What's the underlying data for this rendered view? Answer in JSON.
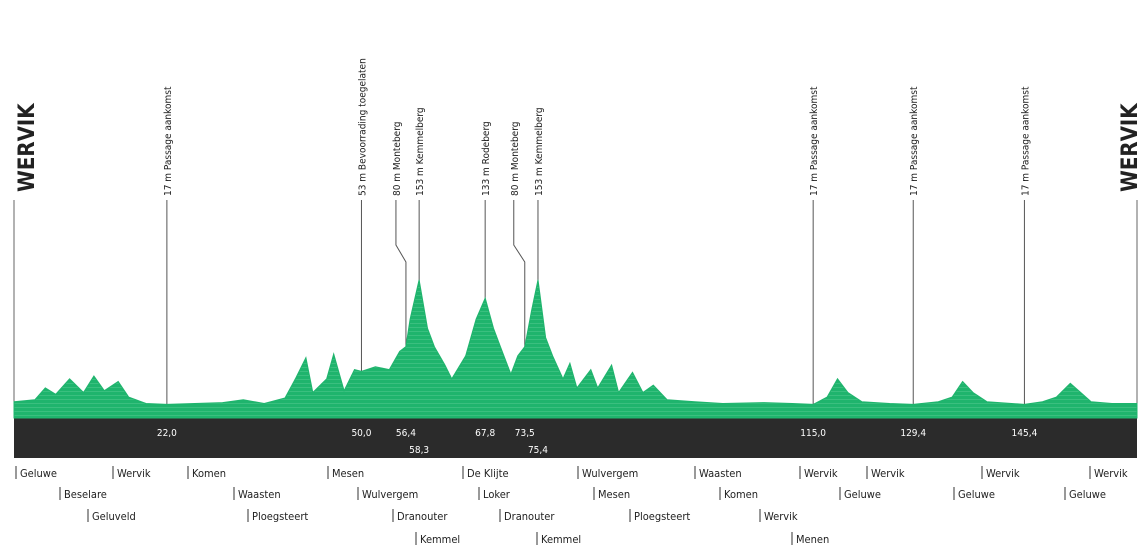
{
  "chart_data": {
    "type": "area",
    "color": "#1fb46d",
    "start_label": "WERVIK",
    "end_label": "WERVIK",
    "x": [
      0,
      3,
      4.5,
      6,
      8,
      10,
      11.5,
      13,
      15,
      16.5,
      19,
      22,
      26,
      30,
      33,
      36,
      39,
      40.5,
      42,
      43,
      45,
      46,
      47.5,
      49,
      50,
      52,
      54,
      55.5,
      56.4,
      57,
      58.3,
      59.5,
      60.5,
      62,
      63,
      65,
      66.5,
      67.8,
      69,
      70,
      71.5,
      72.5,
      73.5,
      74.5,
      75.4,
      76.5,
      77.5,
      79,
      80,
      81,
      83,
      84,
      86,
      87,
      89,
      90.5,
      92,
      94,
      98,
      102,
      108,
      112,
      115,
      117,
      118.5,
      120,
      122,
      126,
      129.4,
      133,
      135,
      136.5,
      138,
      140,
      145.4,
      148,
      150,
      152,
      153.5,
      155,
      158,
      161.6
    ],
    "values": [
      20,
      22,
      35,
      28,
      45,
      30,
      48,
      32,
      42,
      25,
      18,
      17,
      18,
      19,
      22,
      18,
      24,
      45,
      68,
      30,
      45,
      72,
      32,
      55,
      53,
      58,
      55,
      75,
      80,
      110,
      153,
      100,
      80,
      60,
      45,
      70,
      110,
      133,
      100,
      80,
      50,
      70,
      80,
      120,
      153,
      90,
      70,
      45,
      62,
      35,
      55,
      35,
      60,
      30,
      52,
      30,
      38,
      22,
      20,
      18,
      19,
      18,
      17,
      25,
      45,
      30,
      20,
      18,
      17,
      20,
      25,
      42,
      30,
      20,
      17,
      20,
      25,
      40,
      30,
      20,
      18,
      18
    ],
    "xlim": [
      0,
      161.6
    ],
    "ylim": [
      0,
      180
    ],
    "markers": [
      {
        "km": {
          "value": 22.0,
          "label": "22,0"
        },
        "text": "17 m Passage aankomst"
      },
      {
        "km": {
          "value": 50.0,
          "label": "50,0"
        },
        "text": "53 m Bevoorrading toegelaten"
      },
      {
        "km": {
          "value": 56.4,
          "label": "56,4"
        },
        "text": "80 m Monteberg"
      },
      {
        "km": {
          "value": 58.3,
          "label": "58,3"
        },
        "text": "153 m Kemmelberg"
      },
      {
        "km": {
          "value": 67.8,
          "label": "67,8"
        },
        "text": "133 m Rodeberg"
      },
      {
        "km": {
          "value": 73.5,
          "label": "73,5"
        },
        "text": "80 m Monteberg"
      },
      {
        "km": {
          "value": 75.4,
          "label": "75,4"
        },
        "text": "153 m Kemmelberg"
      },
      {
        "km": {
          "value": 115.0,
          "label": "115,0"
        },
        "text": "17 m Passage aankomst"
      },
      {
        "km": {
          "value": 129.4,
          "label": "129,4"
        },
        "text": "17 m Passage aankomst"
      },
      {
        "km": {
          "value": 145.4,
          "label": "145,4"
        },
        "text": "17 m Passage aankomst"
      }
    ],
    "towns": [
      "Geluwe",
      "Beselare",
      "Geluveld",
      "Wervik",
      "Komen",
      "Waasten",
      "Ploegsteert",
      "Mesen",
      "Wulvergem",
      "Dranouter",
      "Kemmel",
      "De Klijte",
      "Loker",
      "Dranouter",
      "Kemmel",
      "Wulvergem",
      "Mesen",
      "Ploegsteert",
      "Waasten",
      "Komen",
      "Wervik",
      "Menen",
      "Wervik",
      "Geluwe",
      "Wervik",
      "Geluwe",
      "Wervik",
      "Geluwe",
      "Wervik"
    ]
  }
}
